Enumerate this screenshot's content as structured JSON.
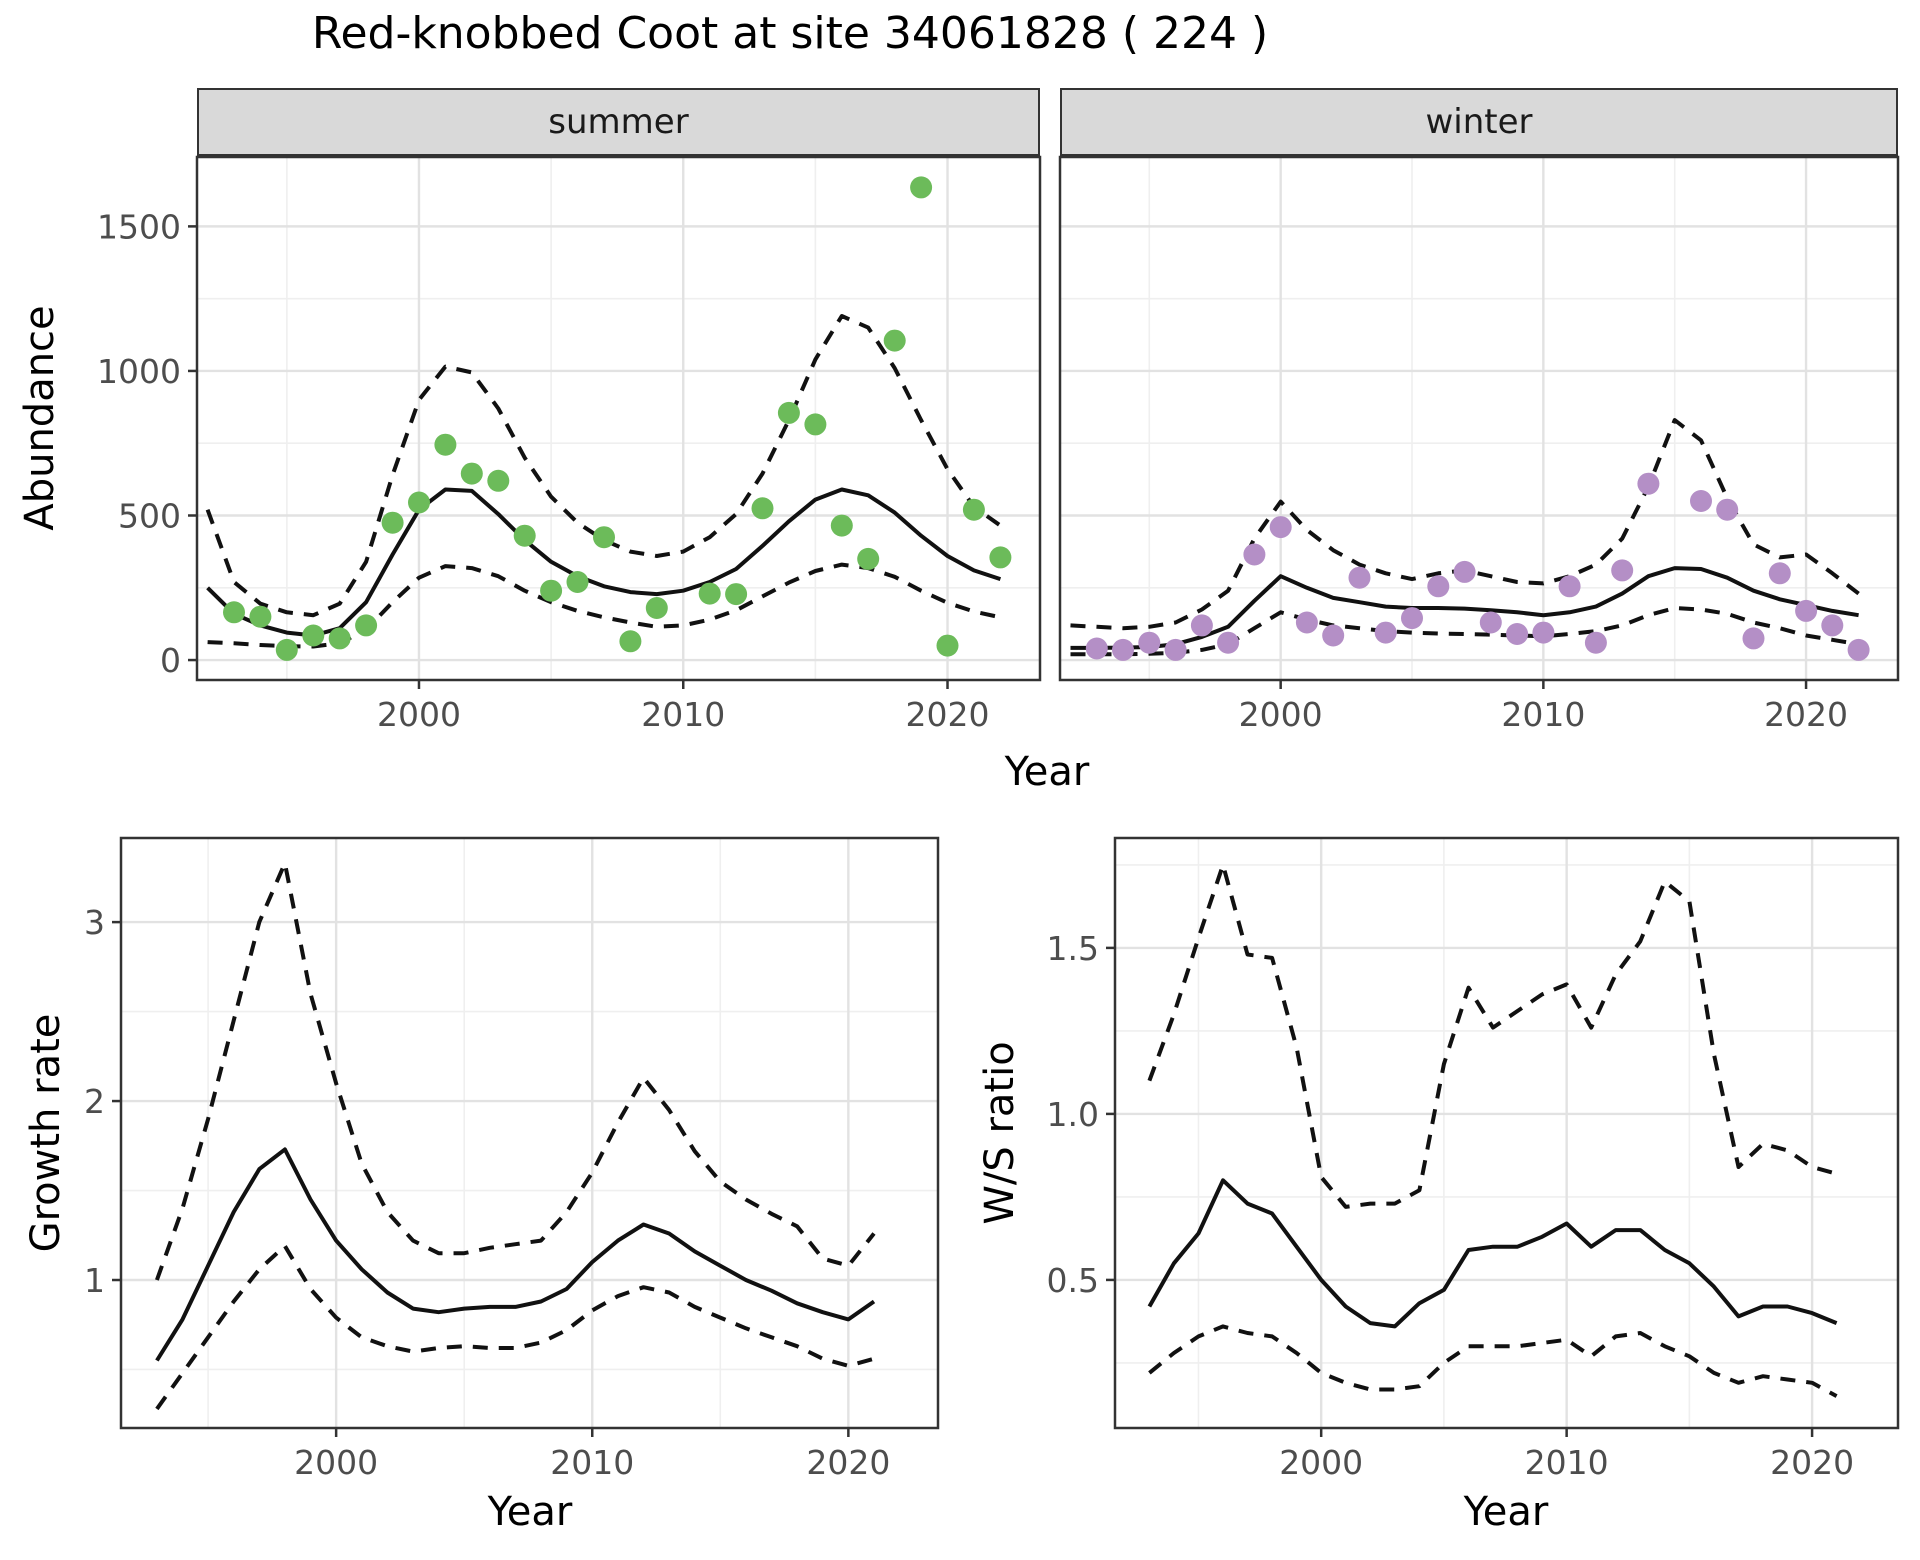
{
  "title": "Red-knobbed Coot at site 34061828 ( 224 )",
  "facets": {
    "summer": "summer",
    "winter": "winter"
  },
  "axis_titles": {
    "abundance": "Abundance",
    "year_top": "Year",
    "growth": "Growth rate",
    "ws": "W/S ratio",
    "year_bottom_left": "Year",
    "year_bottom_right": "Year"
  },
  "colors": {
    "summer_point": "#6CBB5A",
    "winter_point": "#B48FC6",
    "line": "#111111",
    "grid_major": "#E2E2E2",
    "grid_minor": "#EFEFEF",
    "border": "#333333",
    "tick_text": "#4D4D4D",
    "strip_bg": "#D9D9D9"
  },
  "chart_data": [
    {
      "id": "abundance-summer",
      "type": "scatter",
      "facet_label": "summer",
      "xlabel": "Year",
      "ylabel": "Abundance",
      "xlim": [
        1991.6,
        2023.5
      ],
      "ylim": [
        -69,
        1740
      ],
      "x_ticks": [
        2000,
        2010,
        2020
      ],
      "x_tick_labels": [
        "2000",
        "2010",
        "2020"
      ],
      "x_minor": [
        1995,
        2005,
        2015
      ],
      "y_ticks": [
        0,
        500,
        1000,
        1500
      ],
      "y_tick_labels": [
        "0",
        "500",
        "1000",
        "1500"
      ],
      "y_minor": [
        250,
        750,
        1250
      ],
      "points": {
        "years": [
          1993,
          1994,
          1995,
          1996,
          1997,
          1998,
          1999,
          2000,
          2001,
          2002,
          2003,
          2004,
          2005,
          2006,
          2007,
          2008,
          2009,
          2011,
          2012,
          2013,
          2014,
          2015,
          2016,
          2017,
          2018,
          2019,
          2020,
          2021,
          2022
        ],
        "values": [
          165,
          150,
          35,
          85,
          75,
          120,
          475,
          545,
          745,
          645,
          620,
          430,
          240,
          270,
          425,
          65,
          180,
          230,
          228,
          525,
          855,
          815,
          465,
          350,
          1105,
          1635,
          50,
          520,
          355
        ]
      },
      "series": [
        {
          "name": "mean",
          "style": "solid",
          "years": [
            1992,
            1993,
            1994,
            1995,
            1996,
            1997,
            1998,
            1999,
            2000,
            2001,
            2002,
            2003,
            2004,
            2005,
            2006,
            2007,
            2008,
            2009,
            2010,
            2011,
            2012,
            2013,
            2014,
            2015,
            2016,
            2017,
            2018,
            2019,
            2020,
            2021,
            2022
          ],
          "values": [
            250,
            160,
            120,
            95,
            85,
            110,
            200,
            365,
            520,
            590,
            585,
            505,
            415,
            340,
            290,
            255,
            235,
            228,
            240,
            270,
            315,
            395,
            480,
            555,
            590,
            570,
            510,
            430,
            360,
            310,
            280
          ]
        },
        {
          "name": "upper_ci",
          "style": "dashed",
          "years": [
            1992,
            1993,
            1994,
            1995,
            1996,
            1997,
            1998,
            1999,
            2000,
            2001,
            2002,
            2003,
            2004,
            2005,
            2006,
            2007,
            2008,
            2009,
            2010,
            2011,
            2012,
            2013,
            2014,
            2015,
            2016,
            2017,
            2018,
            2019,
            2020,
            2021,
            2022
          ],
          "values": [
            520,
            270,
            195,
            165,
            155,
            195,
            340,
            640,
            900,
            1015,
            995,
            870,
            700,
            565,
            475,
            415,
            375,
            360,
            375,
            425,
            505,
            645,
            830,
            1040,
            1190,
            1150,
            1010,
            830,
            660,
            530,
            465
          ]
        },
        {
          "name": "lower_ci",
          "style": "dashed",
          "years": [
            1992,
            1993,
            1994,
            1995,
            1996,
            1997,
            1998,
            1999,
            2000,
            2001,
            2002,
            2003,
            2004,
            2005,
            2006,
            2007,
            2008,
            2009,
            2010,
            2011,
            2012,
            2013,
            2014,
            2015,
            2016,
            2017,
            2018,
            2019,
            2020,
            2021,
            2022
          ],
          "values": [
            62,
            58,
            52,
            48,
            47,
            58,
            105,
            200,
            285,
            325,
            318,
            290,
            240,
            200,
            170,
            148,
            130,
            115,
            120,
            140,
            172,
            220,
            268,
            308,
            330,
            318,
            288,
            240,
            198,
            168,
            148
          ]
        }
      ]
    },
    {
      "id": "abundance-winter",
      "type": "scatter",
      "facet_label": "winter",
      "xlabel": "Year",
      "ylabel": "Abundance",
      "xlim": [
        1991.6,
        2023.5
      ],
      "ylim": [
        -69,
        1740
      ],
      "x_ticks": [
        2000,
        2010,
        2020
      ],
      "x_tick_labels": [
        "2000",
        "2010",
        "2020"
      ],
      "x_minor": [
        1995,
        2005,
        2015
      ],
      "y_ticks": [
        0,
        500,
        1000,
        1500
      ],
      "y_tick_labels": [],
      "y_minor": [
        250,
        750,
        1250
      ],
      "points": {
        "years": [
          1993,
          1994,
          1995,
          1996,
          1997,
          1998,
          1999,
          2000,
          2001,
          2002,
          2003,
          2004,
          2005,
          2006,
          2007,
          2008,
          2009,
          2010,
          2011,
          2012,
          2013,
          2014,
          2016,
          2017,
          2018,
          2019,
          2020,
          2021,
          2022
        ],
        "values": [
          40,
          35,
          60,
          35,
          120,
          60,
          365,
          460,
          130,
          85,
          285,
          95,
          145,
          255,
          305,
          130,
          90,
          95,
          255,
          60,
          310,
          610,
          550,
          520,
          75,
          300,
          170,
          120,
          35
        ]
      },
      "series": [
        {
          "name": "mean",
          "style": "solid",
          "years": [
            1992,
            1993,
            1994,
            1995,
            1996,
            1997,
            1998,
            1999,
            2000,
            2001,
            2002,
            2003,
            2004,
            2005,
            2006,
            2007,
            2008,
            2009,
            2010,
            2011,
            2012,
            2013,
            2014,
            2015,
            2016,
            2017,
            2018,
            2019,
            2020,
            2021,
            2022
          ],
          "values": [
            42,
            42,
            43,
            45,
            55,
            80,
            115,
            205,
            290,
            250,
            215,
            200,
            185,
            180,
            180,
            178,
            172,
            165,
            155,
            165,
            185,
            230,
            290,
            318,
            315,
            285,
            240,
            210,
            190,
            170,
            155
          ]
        },
        {
          "name": "upper_ci",
          "style": "dashed",
          "years": [
            1992,
            1993,
            1994,
            1995,
            1996,
            1997,
            1998,
            1999,
            2000,
            2001,
            2002,
            2003,
            2004,
            2005,
            2006,
            2007,
            2008,
            2009,
            2010,
            2011,
            2012,
            2013,
            2014,
            2015,
            2016,
            2017,
            2018,
            2019,
            2020,
            2021,
            2022
          ],
          "values": [
            120,
            115,
            110,
            115,
            130,
            175,
            240,
            420,
            548,
            450,
            380,
            330,
            300,
            280,
            300,
            310,
            290,
            270,
            265,
            290,
            330,
            420,
            600,
            830,
            760,
            560,
            400,
            355,
            365,
            300,
            230
          ]
        },
        {
          "name": "lower_ci",
          "style": "dashed",
          "years": [
            1992,
            1993,
            1994,
            1995,
            1996,
            1997,
            1998,
            1999,
            2000,
            2001,
            2002,
            2003,
            2004,
            2005,
            2006,
            2007,
            2008,
            2009,
            2010,
            2011,
            2012,
            2013,
            2014,
            2015,
            2016,
            2017,
            2018,
            2019,
            2020,
            2021,
            2022
          ],
          "values": [
            20,
            20,
            20,
            22,
            25,
            35,
            55,
            110,
            165,
            140,
            120,
            110,
            100,
            95,
            92,
            90,
            88,
            85,
            82,
            90,
            100,
            120,
            155,
            180,
            175,
            160,
            130,
            110,
            85,
            70,
            55
          ]
        }
      ]
    },
    {
      "id": "growth-rate",
      "type": "line",
      "xlabel": "Year",
      "ylabel": "Growth rate",
      "xlim": [
        1991.6,
        2023.5
      ],
      "ylim": [
        0.173,
        3.47
      ],
      "x_ticks": [
        2000,
        2010,
        2020
      ],
      "x_tick_labels": [
        "2000",
        "2010",
        "2020"
      ],
      "x_minor": [
        1995,
        2005,
        2015
      ],
      "y_ticks": [
        1,
        2,
        3
      ],
      "y_tick_labels": [
        "1",
        "2",
        "3"
      ],
      "y_minor": [
        0.5,
        1.5,
        2.5
      ],
      "points": null,
      "series": [
        {
          "name": "mean",
          "style": "solid",
          "years": [
            1993,
            1994,
            1995,
            1996,
            1997,
            1998,
            1999,
            2000,
            2001,
            2002,
            2003,
            2004,
            2005,
            2006,
            2007,
            2008,
            2009,
            2010,
            2011,
            2012,
            2013,
            2014,
            2015,
            2016,
            2017,
            2018,
            2019,
            2020,
            2021
          ],
          "values": [
            0.55,
            0.78,
            1.08,
            1.38,
            1.62,
            1.73,
            1.45,
            1.22,
            1.06,
            0.93,
            0.84,
            0.82,
            0.84,
            0.85,
            0.85,
            0.88,
            0.95,
            1.1,
            1.22,
            1.31,
            1.26,
            1.16,
            1.08,
            1.0,
            0.94,
            0.87,
            0.82,
            0.78,
            0.88
          ]
        },
        {
          "name": "upper_ci",
          "style": "dashed",
          "years": [
            1993,
            1994,
            1995,
            1996,
            1997,
            1998,
            1999,
            2000,
            2001,
            2002,
            2003,
            2004,
            2005,
            2006,
            2007,
            2008,
            2009,
            2010,
            2011,
            2012,
            2013,
            2014,
            2015,
            2016,
            2017,
            2018,
            2019,
            2020,
            2021
          ],
          "values": [
            1.0,
            1.4,
            1.9,
            2.45,
            3.0,
            3.33,
            2.6,
            2.1,
            1.65,
            1.38,
            1.22,
            1.15,
            1.15,
            1.18,
            1.2,
            1.22,
            1.38,
            1.6,
            1.88,
            2.13,
            1.95,
            1.72,
            1.55,
            1.45,
            1.37,
            1.3,
            1.12,
            1.08,
            1.26
          ]
        },
        {
          "name": "lower_ci",
          "style": "dashed",
          "years": [
            1993,
            1994,
            1995,
            1996,
            1997,
            1998,
            1999,
            2000,
            2001,
            2002,
            2003,
            2004,
            2005,
            2006,
            2007,
            2008,
            2009,
            2010,
            2011,
            2012,
            2013,
            2014,
            2015,
            2016,
            2017,
            2018,
            2019,
            2020,
            2021
          ],
          "values": [
            0.28,
            0.48,
            0.68,
            0.88,
            1.06,
            1.19,
            0.95,
            0.79,
            0.68,
            0.63,
            0.6,
            0.62,
            0.63,
            0.62,
            0.62,
            0.65,
            0.72,
            0.83,
            0.91,
            0.96,
            0.93,
            0.85,
            0.79,
            0.73,
            0.68,
            0.63,
            0.56,
            0.52,
            0.56
          ]
        }
      ]
    },
    {
      "id": "ws-ratio",
      "type": "line",
      "xlabel": "Year",
      "ylabel": "W/S ratio",
      "xlim": [
        1991.6,
        2023.5
      ],
      "ylim": [
        0.054,
        1.831
      ],
      "x_ticks": [
        2000,
        2010,
        2020
      ],
      "x_tick_labels": [
        "2000",
        "2010",
        "2020"
      ],
      "x_minor": [
        1995,
        2005,
        2015
      ],
      "y_ticks": [
        0.5,
        1.0,
        1.5
      ],
      "y_tick_labels": [
        "0.5",
        "1.0",
        "1.5"
      ],
      "y_minor": [
        0.25,
        0.75,
        1.25,
        1.75
      ],
      "points": null,
      "series": [
        {
          "name": "mean",
          "style": "solid",
          "years": [
            1993,
            1994,
            1995,
            1996,
            1997,
            1998,
            1999,
            2000,
            2001,
            2002,
            2003,
            2004,
            2005,
            2006,
            2007,
            2008,
            2009,
            2010,
            2011,
            2012,
            2013,
            2014,
            2015,
            2016,
            2017,
            2018,
            2019,
            2020,
            2021
          ],
          "values": [
            0.42,
            0.55,
            0.64,
            0.8,
            0.73,
            0.7,
            0.6,
            0.5,
            0.42,
            0.37,
            0.36,
            0.43,
            0.47,
            0.59,
            0.6,
            0.6,
            0.63,
            0.67,
            0.6,
            0.65,
            0.65,
            0.59,
            0.55,
            0.48,
            0.39,
            0.42,
            0.42,
            0.4,
            0.37
          ]
        },
        {
          "name": "upper_ci",
          "style": "dashed",
          "years": [
            1993,
            1994,
            1995,
            1996,
            1997,
            1998,
            1999,
            2000,
            2001,
            2002,
            2003,
            2004,
            2005,
            2006,
            2007,
            2008,
            2009,
            2010,
            2011,
            2012,
            2013,
            2014,
            2015,
            2016,
            2017,
            2018,
            2019,
            2020,
            2021
          ],
          "values": [
            1.1,
            1.3,
            1.53,
            1.75,
            1.48,
            1.47,
            1.2,
            0.81,
            0.72,
            0.73,
            0.73,
            0.77,
            1.15,
            1.38,
            1.26,
            1.31,
            1.36,
            1.39,
            1.26,
            1.42,
            1.52,
            1.7,
            1.64,
            1.18,
            0.84,
            0.91,
            0.89,
            0.84,
            0.82
          ]
        },
        {
          "name": "lower_ci",
          "style": "dashed",
          "years": [
            1993,
            1994,
            1995,
            1996,
            1997,
            1998,
            1999,
            2000,
            2001,
            2002,
            2003,
            2004,
            2005,
            2006,
            2007,
            2008,
            2009,
            2010,
            2011,
            2012,
            2013,
            2014,
            2015,
            2016,
            2017,
            2018,
            2019,
            2020,
            2021
          ],
          "values": [
            0.22,
            0.28,
            0.33,
            0.36,
            0.34,
            0.33,
            0.28,
            0.22,
            0.19,
            0.17,
            0.17,
            0.18,
            0.25,
            0.3,
            0.3,
            0.3,
            0.31,
            0.32,
            0.27,
            0.33,
            0.34,
            0.3,
            0.27,
            0.22,
            0.19,
            0.21,
            0.2,
            0.19,
            0.15
          ]
        }
      ]
    }
  ]
}
